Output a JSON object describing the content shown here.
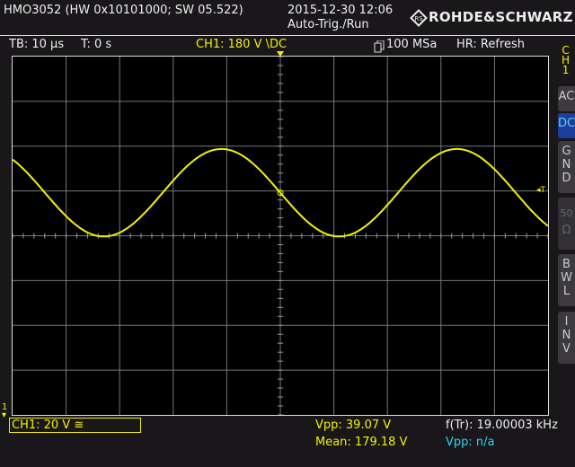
{
  "header": {
    "device_info": "HMO3052 (HW 0x10101000; SW 05.522)",
    "datetime": "2015-12-30 12:06",
    "trigger_status": "Auto-Trig./Run",
    "brand": "ROHDE&SCHWARZ"
  },
  "status_bar": {
    "timebase": "TB: 10 µs",
    "trigger_time": "T: 0 s",
    "trigger_setting": "CH1: 180 V \\DC",
    "sample_rate": "100 MSa",
    "acquisition_mode": "HR: Refresh"
  },
  "side_menu": {
    "channel_label": [
      "C",
      "H",
      "1"
    ],
    "buttons": [
      {
        "label": [
          "A",
          "C"
        ],
        "state": "normal"
      },
      {
        "label": [
          "D",
          "C"
        ],
        "state": "active"
      },
      {
        "label": [
          "G",
          "N",
          "D"
        ],
        "state": "normal"
      },
      {
        "label": [
          "50",
          "Ω"
        ],
        "state": "disabled"
      },
      {
        "label": [
          "B",
          "W",
          "L"
        ],
        "state": "normal"
      },
      {
        "label": [
          "I",
          "N",
          "V"
        ],
        "state": "normal"
      }
    ]
  },
  "bottom": {
    "channel_scale": "CH1: 20 V ≅",
    "vpp_ch1": "Vpp: 39.07 V",
    "mean_ch1": "Mean: 179.18 V",
    "trigger_frequency": "f(Tr): 19.00003 kHz",
    "vpp_other": "Vpp: n/a"
  },
  "markers": {
    "trigger_marker": "T",
    "ground_marker": "1"
  },
  "waveform": {
    "channel": "CH1",
    "shape": "sine",
    "color": "#f2f200",
    "vpp_volts": 39.07,
    "volts_per_div": 20,
    "time_per_div_us": 10
  },
  "colors": {
    "ch1": "#f2f200",
    "secondary_measurement": "#29d3f0",
    "active_button": "#1d3f9a"
  }
}
